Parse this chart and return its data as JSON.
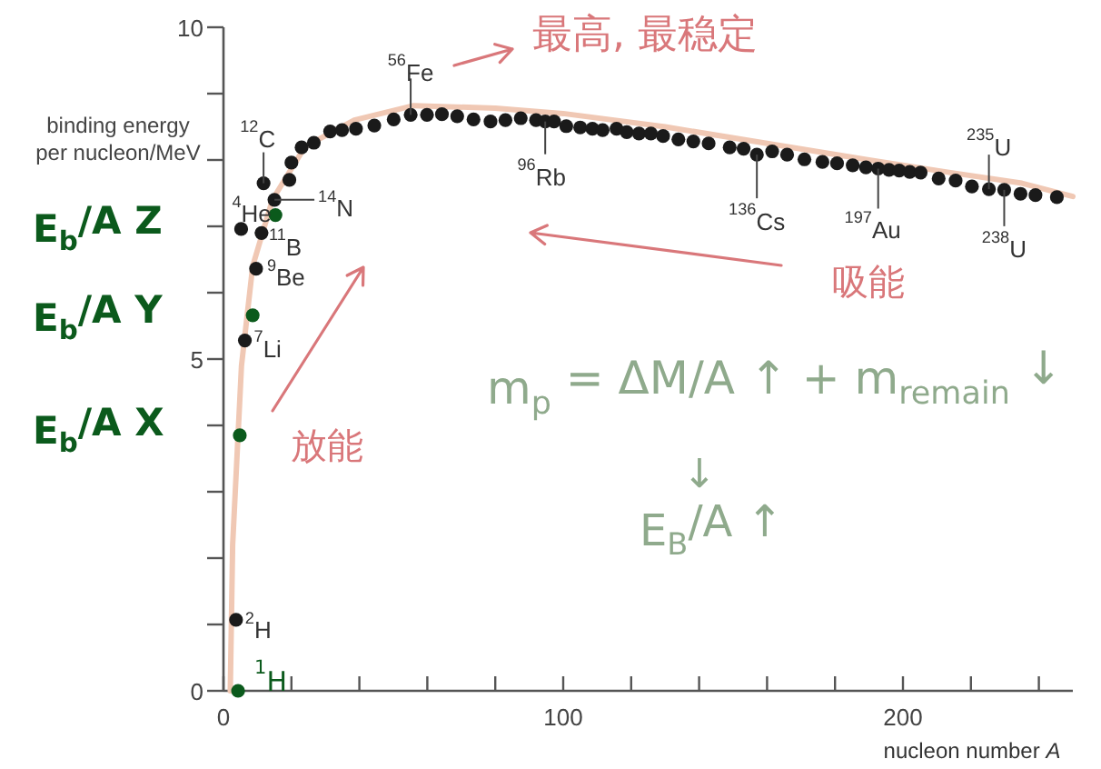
{
  "chart_data": {
    "type": "scatter",
    "xlabel": "nucleon number *A*",
    "ylabel": "binding energy per nucleon/MeV",
    "xlim": [
      0,
      250
    ],
    "ylim": [
      0,
      10
    ],
    "xticks": [
      0,
      {
        "value": 20,
        "label": null
      },
      {
        "value": 40,
        "label": null
      },
      {
        "value": 60,
        "label": null
      },
      {
        "value": 80,
        "label": null
      },
      100,
      {
        "value": 120,
        "label": null
      },
      {
        "value": 140,
        "label": null
      },
      {
        "value": 160,
        "label": null
      },
      {
        "value": 180,
        "label": null
      },
      200,
      {
        "value": 220,
        "label": null
      },
      {
        "value": 240,
        "label": null
      }
    ],
    "yticks": [
      0,
      {
        "value": 1,
        "label": null
      },
      {
        "value": 2,
        "label": null
      },
      {
        "value": 3,
        "label": null
      },
      {
        "value": 4,
        "label": null
      },
      5,
      {
        "value": 6,
        "label": null
      },
      {
        "value": 7,
        "label": null
      },
      {
        "value": 8,
        "label": null
      },
      {
        "value": 9,
        "label": null
      },
      10
    ],
    "marker": "circle",
    "series": [
      {
        "type": "line",
        "marker": "none",
        "color": "#f0c8b4",
        "x": [
          2,
          2.7,
          5.3,
          8.6,
          14.4,
          24,
          38.5,
          56,
          80,
          100,
          130,
          160,
          190,
          214,
          235,
          250
        ],
        "values": [
          0,
          2.2,
          4.9,
          6.4,
          7.4,
          8.2,
          8.6,
          8.82,
          8.78,
          8.7,
          8.5,
          8.25,
          8.0,
          7.81,
          7.65,
          7.45
        ]
      },
      {
        "color": "#1a1a1a",
        "x": [
          3.7,
          6.3,
          9.6,
          5.2,
          11.2,
          11.8,
          15,
          19.4,
          20,
          23,
          26.6,
          31.4,
          34.9,
          39,
          44.4,
          50.1,
          55.1,
          59.9,
          64.3,
          68.8,
          73.6,
          78.6,
          83,
          87.5,
          92,
          94.7,
          97.3,
          100.9,
          105,
          108.6,
          111.6,
          115.7,
          118.7,
          122.3,
          125.8,
          129.4,
          133.9,
          138.3,
          142.8,
          149,
          153.1,
          157,
          161.5,
          165.9,
          171,
          176.3,
          180.6,
          185.2,
          189.1,
          192.7,
          195.9,
          198.9,
          202,
          205.2,
          210.5,
          215.5,
          220.3,
          225.3,
          229.8,
          234.6,
          239,
          245.3
        ],
        "values": [
          1.07,
          5.28,
          6.36,
          6.96,
          6.9,
          7.65,
          7.4,
          7.7,
          7.96,
          8.19,
          8.26,
          8.43,
          8.45,
          8.47,
          8.52,
          8.61,
          8.68,
          8.68,
          8.69,
          8.66,
          8.61,
          8.58,
          8.6,
          8.63,
          8.6,
          8.58,
          8.58,
          8.51,
          8.49,
          8.47,
          8.45,
          8.47,
          8.42,
          8.4,
          8.4,
          8.36,
          8.31,
          8.28,
          8.25,
          8.19,
          8.17,
          8.08,
          8.13,
          8.08,
          8.01,
          7.97,
          7.95,
          7.92,
          7.89,
          7.87,
          7.85,
          7.84,
          7.82,
          7.81,
          7.72,
          7.69,
          7.6,
          7.56,
          7.55,
          7.49,
          7.47,
          7.44
        ]
      },
      {
        "color": "#0b5a1c",
        "x": [
          4.3,
          4.8,
          8.6,
          15.3
        ],
        "values": [
          0,
          3.85,
          5.66,
          7.17
        ]
      }
    ],
    "annotations": [
      {
        "text": "$^{4}$He",
        "x": 5.2,
        "y": 6.96
      },
      {
        "text": "$^{11}$B",
        "x": 11.2,
        "y": 6.9
      },
      {
        "text": "$^{12}$C",
        "x": 11.8,
        "y": 7.65
      },
      {
        "text": "$^{14}$N",
        "x": 15,
        "y": 7.4
      },
      {
        "text": "$^{9}$Be",
        "x": 9.6,
        "y": 6.36
      },
      {
        "text": "$^{7}$Li",
        "x": 6.3,
        "y": 5.28
      },
      {
        "text": "$^{2}$H",
        "x": 3.7,
        "y": 1.07
      },
      {
        "text": "$^{1}$H",
        "x": 4.3,
        "y": 0
      },
      {
        "text": "$^{56}$Fe",
        "x": 55.1,
        "y": 8.68
      },
      {
        "text": "$^{96}$Rb",
        "x": 94.7,
        "y": 8.58
      },
      {
        "text": "$^{136}$Cs",
        "x": 157,
        "y": 8.08
      },
      {
        "text": "$^{197}$Au",
        "x": 192.7,
        "y": 7.87
      },
      {
        "text": "$^{235}$U",
        "x": 225.3,
        "y": 7.56
      },
      {
        "text": "$^{238}$U",
        "x": 229.8,
        "y": 7.55
      },
      "最高, 最稳定",
      "吸能",
      "放能",
      "m$_{p}$ = ΔM/A ↑ + m$_{remain}$ ↓",
      "↓",
      "E$_{B}$/A ↑",
      "E$_{b}$/A  Z",
      "E$_{b}$/A  Y",
      "E$_{b}$/A  X"
    ]
  }
}
